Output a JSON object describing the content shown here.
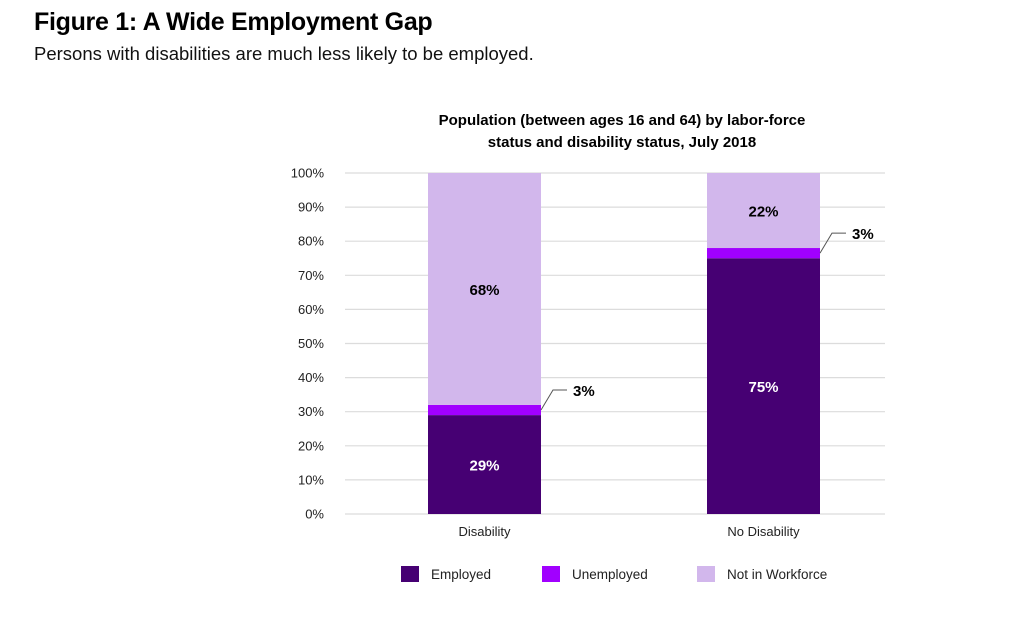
{
  "figure": {
    "title": "Figure 1: A Wide Employment Gap",
    "subtitle": "Persons with disabilities are much less likely to be employed."
  },
  "chart_data": {
    "type": "bar",
    "stacked": true,
    "title_lines": [
      "Population (between ages 16 and 64) by labor-force",
      "status and disability status, July 2018"
    ],
    "categories": [
      "Disability",
      "No Disability"
    ],
    "series": [
      {
        "name": "Employed",
        "values": [
          29,
          75
        ],
        "labels": [
          "29%",
          "75%"
        ],
        "color": "#460073",
        "label_color": "#ffffff"
      },
      {
        "name": "Unemployed",
        "values": [
          3,
          3
        ],
        "labels": [
          "3%",
          "3%"
        ],
        "color": "#a100ff",
        "label_color": "#000000",
        "callout": true
      },
      {
        "name": "Not in Workforce",
        "values": [
          68,
          22
        ],
        "labels": [
          "68%",
          "22%"
        ],
        "color": "#d2b7ec",
        "label_color": "#000000"
      }
    ],
    "yticks": [
      "0%",
      "10%",
      "20%",
      "30%",
      "40%",
      "50%",
      "60%",
      "70%",
      "80%",
      "90%",
      "100%"
    ],
    "ylim": [
      0,
      100
    ],
    "grid": true,
    "legend_position": "bottom",
    "xlabel": "",
    "ylabel": ""
  }
}
